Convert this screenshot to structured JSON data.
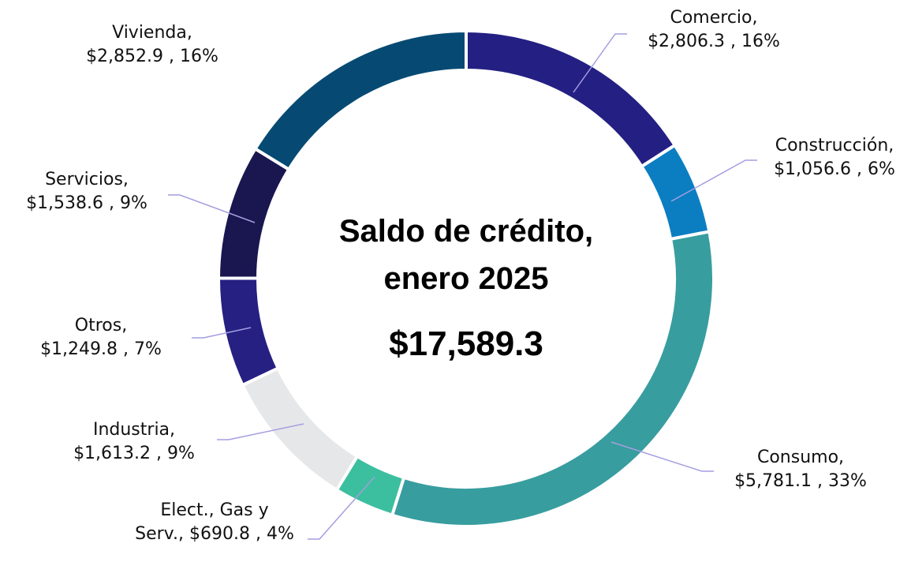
{
  "chart_data": {
    "type": "donut",
    "center_title": [
      "Saldo de crédito,",
      "enero 2025"
    ],
    "total": {
      "value": 17589.3,
      "label": "$17,589.3"
    },
    "categories": [
      "Comercio,",
      "Construcción,",
      "Consumo,",
      "Elect., Gas y Serv.,",
      "Industria,",
      "Otros,",
      "Servicios,",
      "Vivienda,"
    ],
    "values": [
      2806.3,
      1056.6,
      5781.1,
      690.8,
      1613.2,
      1249.8,
      1538.6,
      2852.9
    ],
    "value_labels": [
      "$2,806.3 , 16%",
      "$1,056.6 , 6%",
      "$5,781.1 , 33%",
      "$690.8 , 4%",
      "$1,613.2 , 9%",
      "$1,249.8 , 7%",
      "$1,538.6 , 9%",
      "$2,852.9 , 16%"
    ],
    "colors": [
      "#241f82",
      "#0b7ec2",
      "#389d9f",
      "#3bbf9e",
      "#e6e7e9",
      "#262083",
      "#1a1650",
      "#064a73"
    ]
  }
}
